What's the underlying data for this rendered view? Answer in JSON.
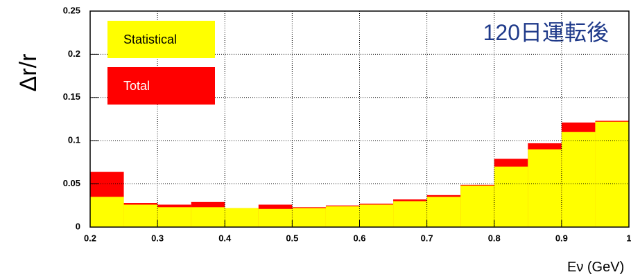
{
  "chart_data": {
    "type": "histogram",
    "y_label": "Δr/r",
    "x_label": "Eν (GeV)",
    "annotation": "120日運転後",
    "bins": [
      0.2,
      0.25,
      0.3,
      0.35,
      0.4,
      0.45,
      0.5,
      0.55,
      0.6,
      0.65,
      0.7,
      0.75,
      0.8,
      0.85,
      0.9,
      0.95,
      1.0
    ],
    "series": [
      {
        "name": "Statistical",
        "color": "#ffff00",
        "values": [
          0.035,
          0.026,
          0.023,
          0.023,
          0.022,
          0.021,
          0.022,
          0.024,
          0.026,
          0.03,
          0.035,
          0.048,
          0.07,
          0.09,
          0.11,
          0.122
        ]
      },
      {
        "name": "Total",
        "color": "#ff0000",
        "values": [
          0.064,
          0.028,
          0.026,
          0.029,
          0.022,
          0.026,
          0.023,
          0.025,
          0.027,
          0.032,
          0.037,
          0.049,
          0.079,
          0.097,
          0.121,
          0.123
        ]
      }
    ],
    "xlim": [
      0.2,
      1
    ],
    "ylim": [
      0,
      0.25
    ],
    "xticks": [
      0.2,
      0.3,
      0.4,
      0.5,
      0.6,
      0.7,
      0.8,
      0.9,
      1
    ],
    "yticks": [
      0,
      0.05,
      0.1,
      0.15,
      0.2,
      0.25
    ],
    "grid": true
  }
}
